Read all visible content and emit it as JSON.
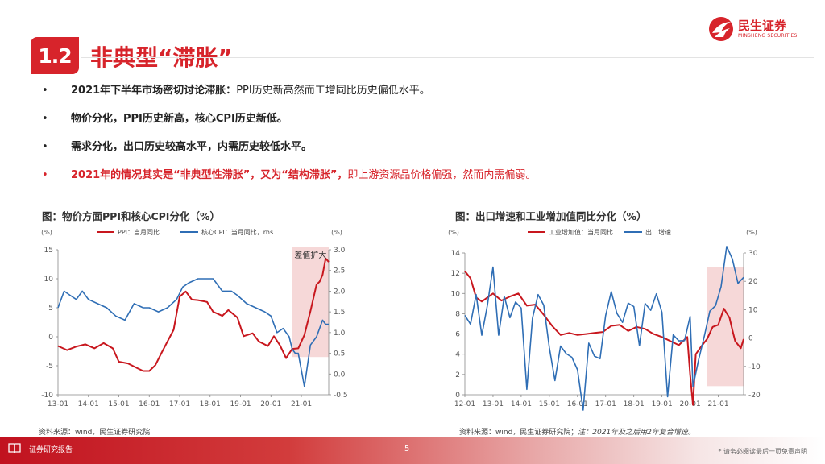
{
  "header": {
    "section_number": "1.2",
    "section_title": "非典型“滞胀”",
    "logo_text": "民生证券",
    "logo_subtext": "MINSHENG SECURITIES"
  },
  "bullets": [
    {
      "marker": "•",
      "bold": "2021年下半年市场密切讨论滞胀：",
      "text": "PPI历史新高然而工增同比历史偏低水平。",
      "highlight": false
    },
    {
      "marker": "•",
      "bold": "物价分化，PPI历史新高，核心CPI历史新低。",
      "text": "",
      "highlight": false
    },
    {
      "marker": "•",
      "bold": "需求分化，出口历史较高水平，内需历史较低水平。",
      "text": "",
      "highlight": false
    },
    {
      "marker": "•",
      "bold": "2021年的情况其实是“非典型性滞胀”，又为“结构滞胀”，",
      "text": "即上游资源品价格偏强，然而内需偏弱。",
      "highlight": true
    }
  ],
  "colors": {
    "brand_red": "#d7242b",
    "series_red": "#c8171e",
    "series_blue": "#2f6eb5",
    "shade": "#f6d8d8"
  },
  "chart_data": [
    {
      "type": "line",
      "title": "图：物价方面PPI和核心CPI分化（%）",
      "left_unit": "(%)",
      "right_unit": "(%)",
      "annotation": "差值扩大",
      "x_ticks": [
        "13-01",
        "14-01",
        "15-01",
        "16-01",
        "17-01",
        "18-01",
        "19-01",
        "20-01",
        "21-01"
      ],
      "x_start": 2013.0,
      "x_end": 2021.9,
      "ylim": [
        -10,
        15
      ],
      "y_ticks": [
        -10,
        -5,
        0,
        5,
        10,
        15
      ],
      "y_tick_labels": [
        "-10",
        "-5",
        "0",
        "5",
        "10",
        "15"
      ],
      "y2lim": [
        -0.5,
        3.0
      ],
      "y2_ticks": [
        -0.5,
        0.0,
        0.5,
        1.0,
        1.5,
        2.0,
        2.5,
        3.0
      ],
      "y2_tick_labels": [
        "-0.5",
        "0.0",
        "0.5",
        "1.0",
        "1.5",
        "2.0",
        "2.5",
        "3.0"
      ],
      "shade_x": [
        2020.7,
        2021.9
      ],
      "shade_y": [
        -3.5,
        15.5
      ],
      "series": [
        {
          "name": "PPI：当月同比",
          "axis": "left",
          "color": "#c8171e",
          "x": [
            2013.0,
            2013.3,
            2013.6,
            2013.9,
            2014.2,
            2014.5,
            2014.8,
            2015.0,
            2015.3,
            2015.6,
            2015.8,
            2016.0,
            2016.2,
            2016.4,
            2016.6,
            2016.8,
            2017.0,
            2017.2,
            2017.4,
            2017.6,
            2017.9,
            2018.1,
            2018.4,
            2018.6,
            2018.9,
            2019.1,
            2019.4,
            2019.6,
            2019.9,
            2020.1,
            2020.3,
            2020.5,
            2020.7,
            2020.9,
            2021.1,
            2021.3,
            2021.5,
            2021.6,
            2021.7,
            2021.8,
            2021.9
          ],
          "y": [
            -1.6,
            -2.3,
            -1.7,
            -1.3,
            -2.0,
            -1.1,
            -2.0,
            -4.3,
            -4.6,
            -5.4,
            -5.9,
            -5.9,
            -4.9,
            -2.8,
            -0.8,
            1.2,
            6.9,
            7.8,
            6.4,
            6.3,
            6.0,
            4.3,
            3.6,
            4.6,
            3.3,
            0.1,
            0.6,
            -0.8,
            -1.6,
            0.1,
            -1.5,
            -3.7,
            -2.1,
            -2.0,
            0.3,
            4.4,
            9.0,
            9.5,
            10.7,
            13.5,
            12.9
          ]
        },
        {
          "name": "核心CPI：当月同比，rhs",
          "axis": "right",
          "color": "#2f6eb5",
          "x": [
            2013.0,
            2013.2,
            2013.4,
            2013.6,
            2013.8,
            2014.0,
            2014.3,
            2014.6,
            2014.9,
            2015.2,
            2015.5,
            2015.8,
            2016.0,
            2016.3,
            2016.6,
            2016.9,
            2017.1,
            2017.3,
            2017.6,
            2017.9,
            2018.1,
            2018.4,
            2018.7,
            2018.9,
            2019.2,
            2019.5,
            2019.8,
            2020.0,
            2020.2,
            2020.4,
            2020.6,
            2020.7,
            2020.8,
            2020.9,
            2021.1,
            2021.3,
            2021.5,
            2021.7,
            2021.8,
            2021.9
          ],
          "y": [
            1.6,
            2.0,
            1.9,
            1.8,
            2.0,
            1.8,
            1.7,
            1.6,
            1.4,
            1.3,
            1.7,
            1.6,
            1.6,
            1.5,
            1.6,
            1.8,
            2.1,
            2.2,
            2.3,
            2.3,
            2.3,
            2.0,
            2.0,
            1.9,
            1.7,
            1.6,
            1.5,
            1.4,
            1.0,
            1.1,
            0.9,
            0.6,
            0.5,
            0.5,
            -0.3,
            0.7,
            0.9,
            1.3,
            1.2,
            1.2
          ]
        }
      ]
    },
    {
      "type": "line",
      "title": "图：出口增速和工业增加值同比分化（%）",
      "left_unit": "(%)",
      "right_unit": "(%)",
      "x_ticks": [
        "12-01",
        "13-01",
        "14-01",
        "15-01",
        "16-01",
        "17-01",
        "18-01",
        "19-01",
        "20-01",
        "21-01"
      ],
      "x_start": 2012.0,
      "x_end": 2021.9,
      "ylim": [
        0,
        14
      ],
      "y_ticks": [
        0,
        2,
        4,
        6,
        8,
        10,
        12,
        14
      ],
      "y_tick_labels": [
        "0",
        "2",
        "4",
        "6",
        "8",
        "10",
        "12",
        "14"
      ],
      "y2lim": [
        -20,
        30
      ],
      "y2_ticks": [
        -20,
        -10,
        0,
        10,
        20,
        30
      ],
      "y2_tick_labels": [
        "-20",
        "-10",
        "0",
        "10",
        "20",
        "30"
      ],
      "shade_x": [
        2020.6,
        2021.9
      ],
      "shade_y": [
        0.85,
        12.6
      ],
      "series": [
        {
          "name": "工业增加值：当月同比",
          "axis": "left",
          "color": "#c8171e",
          "x": [
            2012.0,
            2012.2,
            2012.4,
            2012.6,
            2012.8,
            2013.0,
            2013.3,
            2013.6,
            2013.9,
            2014.2,
            2014.5,
            2014.8,
            2015.1,
            2015.4,
            2015.7,
            2016.0,
            2016.3,
            2016.6,
            2016.9,
            2017.2,
            2017.5,
            2017.8,
            2018.1,
            2018.4,
            2018.7,
            2019.0,
            2019.3,
            2019.6,
            2019.9,
            2020.0,
            2020.1,
            2020.2,
            2020.4,
            2020.6,
            2020.8,
            2021.0,
            2021.2,
            2021.4,
            2021.5,
            2021.6,
            2021.8,
            2021.9
          ],
          "y": [
            12.2,
            11.5,
            9.6,
            9.2,
            9.6,
            10.0,
            9.3,
            9.7,
            10.0,
            8.8,
            8.9,
            7.9,
            6.8,
            5.9,
            6.1,
            5.9,
            6.0,
            6.1,
            6.2,
            6.8,
            6.9,
            6.3,
            6.7,
            6.5,
            6.0,
            5.7,
            5.3,
            4.9,
            5.7,
            2.0,
            -1.0,
            4.0,
            4.8,
            5.5,
            6.7,
            6.9,
            8.5,
            7.6,
            6.4,
            5.3,
            4.6,
            5.5
          ]
        },
        {
          "name": "出口增速",
          "axis": "right",
          "color": "#2f6eb5",
          "x": [
            2012.0,
            2012.2,
            2012.4,
            2012.6,
            2012.8,
            2013.0,
            2013.2,
            2013.4,
            2013.6,
            2013.8,
            2014.0,
            2014.2,
            2014.4,
            2014.6,
            2014.8,
            2015.0,
            2015.2,
            2015.4,
            2015.6,
            2015.8,
            2016.0,
            2016.2,
            2016.4,
            2016.6,
            2016.8,
            2017.0,
            2017.2,
            2017.4,
            2017.6,
            2017.8,
            2018.0,
            2018.2,
            2018.4,
            2018.6,
            2018.8,
            2019.0,
            2019.2,
            2019.4,
            2019.6,
            2019.8,
            2020.0,
            2020.1,
            2020.3,
            2020.5,
            2020.7,
            2020.9,
            2021.1,
            2021.3,
            2021.5,
            2021.7,
            2021.9
          ],
          "y": [
            8.0,
            4.9,
            15.3,
            1.0,
            11.6,
            25.0,
            1.0,
            14.7,
            7.2,
            12.7,
            10.6,
            -18.1,
            7.0,
            15.3,
            11.6,
            -3.3,
            -15.0,
            -2.8,
            -5.5,
            -6.8,
            -11.2,
            -25.4,
            -1.8,
            -6.4,
            -7.3,
            7.9,
            16.4,
            8.7,
            5.5,
            12.3,
            11.1,
            -2.7,
            12.2,
            9.8,
            15.6,
            9.1,
            -20.7,
            1.1,
            -1.0,
            -0.9,
            7.6,
            -17.2,
            -7.7,
            0.5,
            9.5,
            11.4,
            18.1,
            32.3,
            27.9,
            19.3,
            21.4
          ]
        }
      ]
    }
  ],
  "sources": [
    {
      "text": "资料来源：wind，民生证券研究院",
      "note": ""
    },
    {
      "text": "资料来源：wind，民生证券研究院；",
      "note": "注：2021年及之后用2年复合增速。"
    }
  ],
  "footer": {
    "left": "证券研究报告",
    "page": "5",
    "right": "* 请务必阅读最后一页免责声明"
  }
}
